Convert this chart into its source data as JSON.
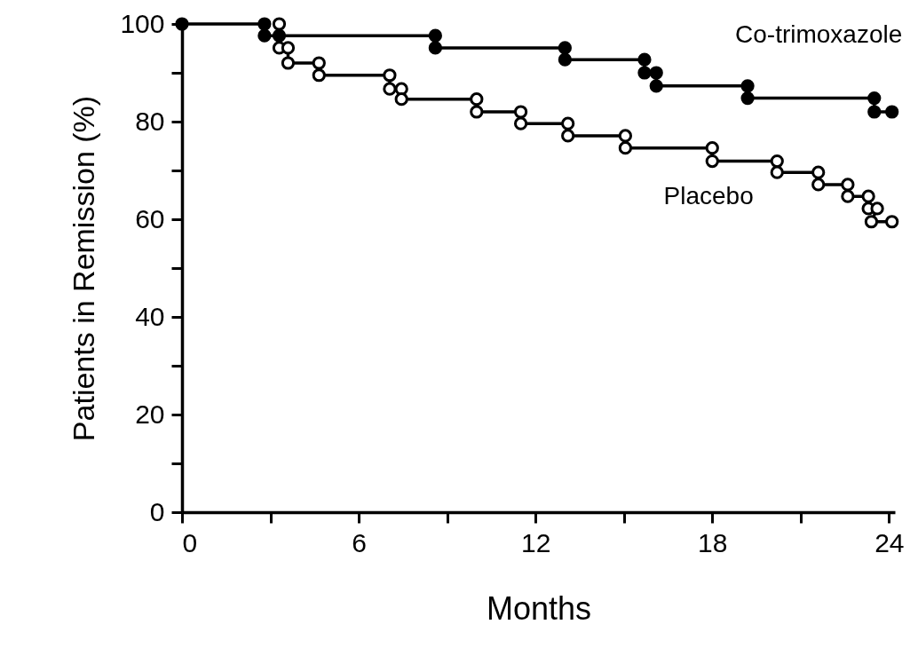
{
  "chart_data": {
    "type": "line",
    "xlabel": "Months",
    "ylabel": "Patients in Remission (%)",
    "xlim": [
      0,
      24.2
    ],
    "ylim": [
      0,
      100
    ],
    "xticks": [
      0,
      {
        "value": 3,
        "label": null
      },
      6,
      {
        "value": 9,
        "label": null
      },
      12,
      {
        "value": 15,
        "label": null
      },
      18,
      {
        "value": 21,
        "label": null
      },
      24
    ],
    "yticks": [
      0,
      {
        "value": 10,
        "label": null
      },
      20,
      {
        "value": 30,
        "label": null
      },
      40,
      {
        "value": 50,
        "label": null
      },
      60,
      {
        "value": 70,
        "label": null
      },
      80,
      {
        "value": 90,
        "label": null
      },
      100
    ],
    "grid": false,
    "marker": "circle",
    "line_style": "solid",
    "series": [
      {
        "name": "Co-trimoxazole",
        "color": "#000000",
        "x": [
          0,
          2.8,
          2.8,
          3.3,
          8.6,
          8.6,
          13.0,
          13.0,
          15.7,
          15.7,
          16.1,
          16.1,
          19.2,
          19.2,
          23.5,
          23.5,
          24.1
        ],
        "values": [
          100,
          100,
          97.6,
          97.6,
          97.6,
          95.1,
          95.1,
          92.7,
          92.7,
          90.0,
          90.0,
          87.3,
          87.3,
          84.8,
          84.8,
          82.0,
          82.0
        ]
      },
      {
        "name": "Placebo",
        "color": "#000000",
        "x": [
          3.3,
          3.3,
          3.6,
          3.6,
          4.65,
          4.65,
          7.05,
          7.05,
          7.45,
          7.45,
          10.0,
          10.0,
          11.5,
          11.5,
          13.1,
          13.1,
          15.05,
          15.05,
          18.0,
          18.0,
          20.2,
          20.2,
          21.6,
          21.6,
          22.6,
          22.6,
          23.3,
          23.3,
          23.6,
          23.4,
          24.1
        ],
        "values": [
          100,
          95.1,
          95.1,
          92.0,
          92.0,
          89.5,
          89.5,
          86.7,
          86.7,
          84.6,
          84.6,
          82.0,
          82.0,
          79.6,
          79.6,
          77.1,
          77.1,
          74.6,
          74.6,
          71.9,
          71.9,
          69.6,
          69.6,
          67.1,
          67.1,
          64.7,
          64.7,
          62.2,
          62.2,
          59.5,
          59.5
        ]
      }
    ]
  }
}
